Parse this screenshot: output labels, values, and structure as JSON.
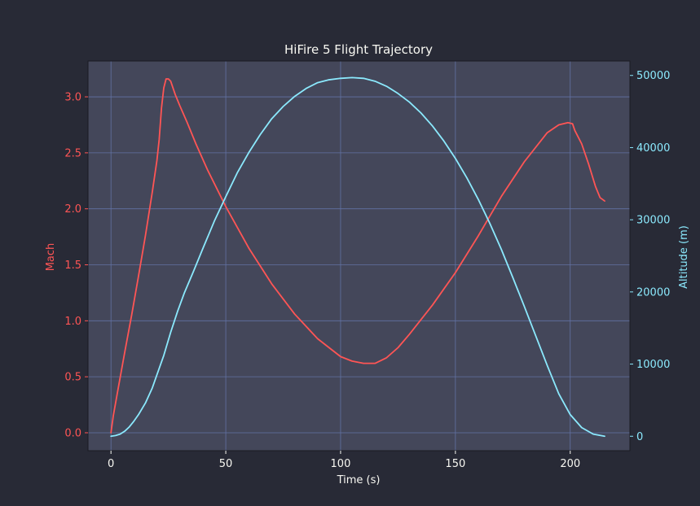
{
  "chart_data": {
    "type": "line",
    "title": "HiFire 5 Flight Trajectory",
    "xlabel": "Time (s)",
    "ylabel_left": "Mach",
    "ylabel_right": "Altitude (m)",
    "xlim": [
      -10,
      226
    ],
    "ylim_left": [
      -0.16,
      3.32
    ],
    "ylim_right": [
      -2000,
      52000
    ],
    "x_ticks": [
      0,
      50,
      100,
      150,
      200
    ],
    "y_left_ticks": [
      0.0,
      0.5,
      1.0,
      1.5,
      2.0,
      2.5,
      3.0
    ],
    "y_right_ticks": [
      0,
      10000,
      20000,
      30000,
      40000,
      50000
    ],
    "grid": true,
    "colors": {
      "background": "#282a36",
      "plot_area": "#44475a",
      "grid": "#6272a4",
      "text": "#f8f8f2",
      "mach": "#ff5555",
      "altitude": "#8be9fd"
    },
    "series": [
      {
        "name": "Mach",
        "axis": "left",
        "x": [
          0,
          1,
          3,
          6,
          9,
          12,
          15,
          18,
          20,
          21,
          22,
          23,
          24,
          25,
          26,
          27,
          28,
          30,
          33,
          37,
          42,
          50,
          60,
          70,
          80,
          90,
          100,
          105,
          110,
          115,
          120,
          125,
          130,
          140,
          150,
          160,
          170,
          180,
          190,
          195,
          199,
          201,
          202,
          205,
          208,
          211,
          213,
          215
        ],
        "values": [
          0.0,
          0.15,
          0.38,
          0.72,
          1.05,
          1.4,
          1.76,
          2.15,
          2.43,
          2.62,
          2.9,
          3.08,
          3.16,
          3.16,
          3.14,
          3.08,
          3.02,
          2.92,
          2.78,
          2.58,
          2.35,
          2.02,
          1.65,
          1.33,
          1.06,
          0.84,
          0.68,
          0.64,
          0.62,
          0.62,
          0.67,
          0.76,
          0.88,
          1.14,
          1.43,
          1.76,
          2.11,
          2.42,
          2.68,
          2.75,
          2.77,
          2.76,
          2.7,
          2.58,
          2.4,
          2.2,
          2.1,
          2.07
        ]
      },
      {
        "name": "Altitude",
        "axis": "right",
        "x": [
          0,
          2,
          4,
          6,
          8,
          10,
          12,
          15,
          18,
          20,
          23,
          26,
          29,
          32,
          36,
          40,
          45,
          50,
          55,
          60,
          65,
          70,
          75,
          80,
          85,
          90,
          95,
          100,
          105,
          110,
          115,
          120,
          125,
          130,
          135,
          140,
          145,
          150,
          155,
          160,
          165,
          170,
          175,
          180,
          185,
          190,
          195,
          200,
          205,
          210,
          215
        ],
        "values": [
          0,
          100,
          300,
          700,
          1300,
          2100,
          3000,
          4600,
          6700,
          8500,
          11200,
          14400,
          17300,
          19900,
          22900,
          26000,
          29800,
          33200,
          36500,
          39300,
          41800,
          44000,
          45700,
          47100,
          48200,
          49000,
          49400,
          49600,
          49700,
          49600,
          49200,
          48500,
          47500,
          46300,
          44800,
          43000,
          40900,
          38500,
          35800,
          32800,
          29500,
          25900,
          22000,
          18000,
          13900,
          9800,
          5900,
          3000,
          1200,
          300,
          0
        ]
      }
    ]
  }
}
